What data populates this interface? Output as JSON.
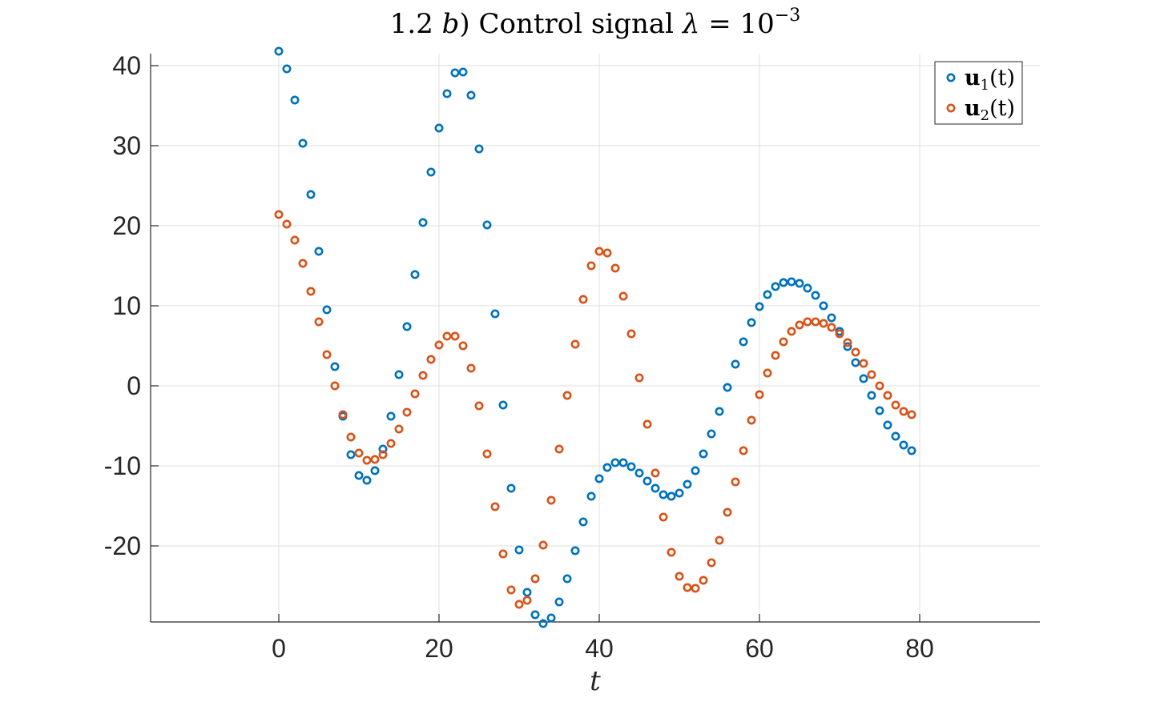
{
  "chart_data": {
    "type": "scatter",
    "title": "1.2 b) Control signal λ = 10⁻³",
    "title_parts": {
      "prefix": "1.2 ",
      "letter": "b",
      "middle": ") Control signal ",
      "lambda": "λ",
      "equals": " = 10",
      "exponent": "−3"
    },
    "xlabel": "t",
    "ylabel": "",
    "xlim": [
      -16,
      95
    ],
    "ylim": [
      -29.5,
      41.5
    ],
    "xticks": [
      0,
      20,
      40,
      60,
      80
    ],
    "yticks": [
      -20,
      -10,
      0,
      10,
      20,
      30,
      40
    ],
    "xtick_labels": [
      "0",
      "20",
      "40",
      "60",
      "80"
    ],
    "ytick_labels": [
      "-20",
      "-10",
      "0",
      "10",
      "20",
      "30",
      "40"
    ],
    "grid": true,
    "legend_position": "top-right",
    "marker": "open circle",
    "series": [
      {
        "name": "u1(t)",
        "legend_bold": "u",
        "legend_sub": "1",
        "legend_rest": "(t)",
        "color": "#0072BD",
        "x": [
          0,
          1,
          2,
          3,
          4,
          5,
          6,
          7,
          8,
          9,
          10,
          11,
          12,
          13,
          14,
          15,
          16,
          17,
          18,
          19,
          20,
          21,
          22,
          23,
          24,
          25,
          26,
          27,
          28,
          29,
          30,
          31,
          32,
          33,
          34,
          35,
          36,
          37,
          38,
          39,
          40,
          41,
          42,
          43,
          44,
          45,
          46,
          47,
          48,
          49,
          50,
          51,
          52,
          53,
          54,
          55,
          56,
          57,
          58,
          59,
          60,
          61,
          62,
          63,
          64,
          65,
          66,
          67,
          68,
          69,
          70,
          71,
          72,
          73,
          74,
          75,
          76,
          77,
          78,
          79
        ],
        "y": [
          41.8,
          39.6,
          35.7,
          30.3,
          23.9,
          16.8,
          9.5,
          2.4,
          -3.8,
          -8.6,
          -11.2,
          -11.8,
          -10.6,
          -7.9,
          -3.8,
          1.4,
          7.4,
          13.9,
          20.4,
          26.7,
          32.2,
          36.5,
          39.1,
          39.2,
          36.3,
          29.6,
          20.1,
          9.0,
          -2.4,
          -12.8,
          -20.5,
          -25.8,
          -28.6,
          -29.7,
          -29.0,
          -27.0,
          -24.1,
          -20.6,
          -17.0,
          -13.8,
          -11.6,
          -10.2,
          -9.6,
          -9.6,
          -10.1,
          -10.9,
          -11.9,
          -12.8,
          -13.6,
          -13.8,
          -13.4,
          -12.3,
          -10.6,
          -8.5,
          -6.0,
          -3.2,
          -0.2,
          2.7,
          5.5,
          7.9,
          9.9,
          11.4,
          12.4,
          12.9,
          13.0,
          12.8,
          12.2,
          11.3,
          10.0,
          8.5,
          6.8,
          4.9,
          2.9,
          0.9,
          -1.2,
          -3.1,
          -4.9,
          -6.3,
          -7.4,
          -8.1
        ]
      },
      {
        "name": "u2(t)",
        "legend_bold": "u",
        "legend_sub": "2",
        "legend_rest": "(t)",
        "color": "#D95319",
        "x": [
          0,
          1,
          2,
          3,
          4,
          5,
          6,
          7,
          8,
          9,
          10,
          11,
          12,
          13,
          14,
          15,
          16,
          17,
          18,
          19,
          20,
          21,
          22,
          23,
          24,
          25,
          26,
          27,
          28,
          29,
          30,
          31,
          32,
          33,
          34,
          35,
          36,
          37,
          38,
          39,
          40,
          41,
          42,
          43,
          44,
          45,
          46,
          47,
          48,
          49,
          50,
          51,
          52,
          53,
          54,
          55,
          56,
          57,
          58,
          59,
          60,
          61,
          62,
          63,
          64,
          65,
          66,
          67,
          68,
          69,
          70,
          71,
          72,
          73,
          74,
          75,
          76,
          77,
          78,
          79
        ],
        "y": [
          21.4,
          20.2,
          18.2,
          15.3,
          11.8,
          8.0,
          3.9,
          0.0,
          -3.6,
          -6.4,
          -8.4,
          -9.3,
          -9.2,
          -8.6,
          -7.2,
          -5.4,
          -3.3,
          -1.0,
          1.3,
          3.3,
          5.1,
          6.2,
          6.2,
          5.0,
          2.2,
          -2.5,
          -8.5,
          -15.1,
          -21.0,
          -25.5,
          -27.3,
          -26.8,
          -24.1,
          -19.9,
          -14.3,
          -7.9,
          -1.2,
          5.2,
          10.8,
          15.0,
          16.8,
          16.6,
          14.7,
          11.2,
          6.5,
          1.0,
          -4.8,
          -10.9,
          -16.4,
          -20.8,
          -23.8,
          -25.2,
          -25.3,
          -24.3,
          -22.1,
          -19.3,
          -15.8,
          -12.0,
          -8.1,
          -4.3,
          -1.1,
          1.6,
          3.8,
          5.5,
          6.8,
          7.6,
          8.0,
          8.0,
          7.8,
          7.3,
          6.5,
          5.4,
          4.2,
          2.8,
          1.4,
          0.0,
          -1.2,
          -2.4,
          -3.2,
          -3.6
        ]
      }
    ]
  }
}
